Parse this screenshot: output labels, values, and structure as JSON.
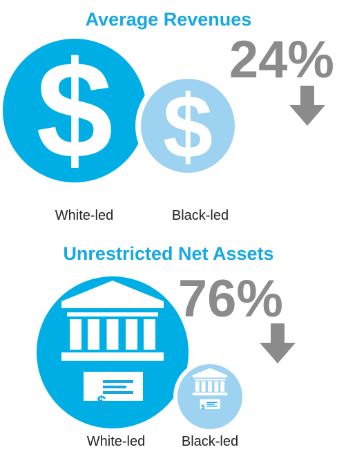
{
  "sections": [
    {
      "title": "Average Revenues",
      "change": "24%",
      "groups": [
        "White-led",
        "Black-led"
      ],
      "symbol": "$"
    },
    {
      "title": "Unrestricted Net Assets",
      "change": "76%",
      "groups": [
        "White-led",
        "Black-led"
      ],
      "symbol": "$"
    }
  ]
}
